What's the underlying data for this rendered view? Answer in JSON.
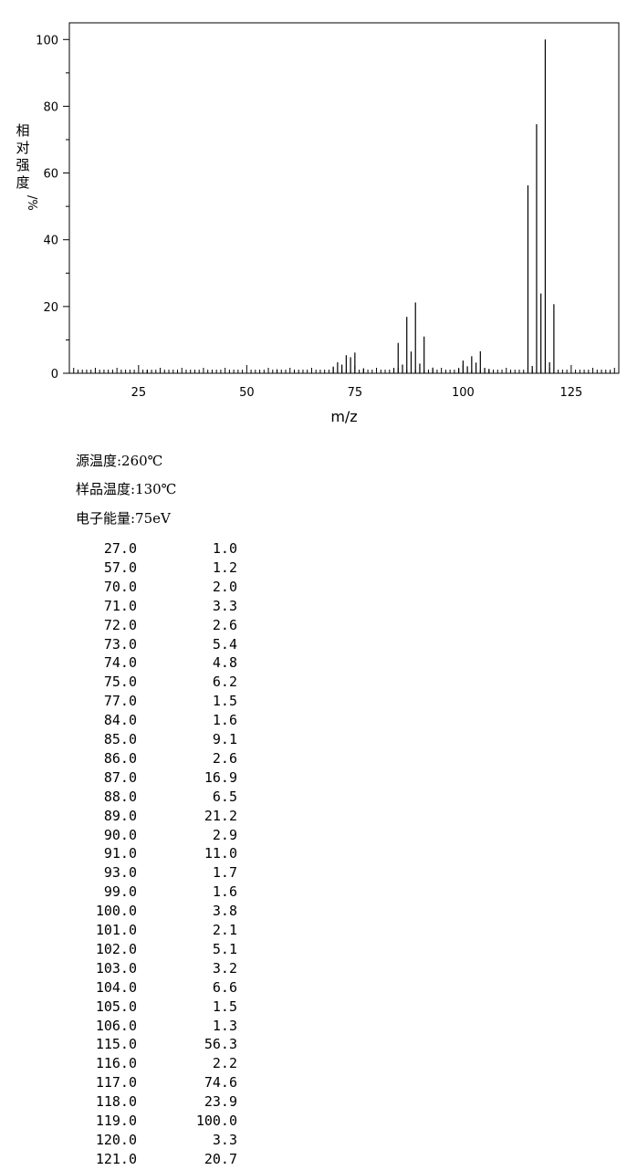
{
  "chart_data": {
    "type": "bar",
    "xlabel": "m/z",
    "ylabel_chars": [
      "相",
      "对",
      "强",
      "度",
      "/%"
    ],
    "xlim": [
      9,
      136
    ],
    "ylim": [
      0,
      105
    ],
    "x_ticks": [
      25,
      50,
      75,
      100,
      125
    ],
    "y_ticks": [
      0,
      20,
      40,
      60,
      80,
      100
    ],
    "grid": false,
    "peaks": [
      {
        "mz": "27.0",
        "ri": "1.0"
      },
      {
        "mz": "57.0",
        "ri": "1.2"
      },
      {
        "mz": "70.0",
        "ri": "2.0"
      },
      {
        "mz": "71.0",
        "ri": "3.3"
      },
      {
        "mz": "72.0",
        "ri": "2.6"
      },
      {
        "mz": "73.0",
        "ri": "5.4"
      },
      {
        "mz": "74.0",
        "ri": "4.8"
      },
      {
        "mz": "75.0",
        "ri": "6.2"
      },
      {
        "mz": "77.0",
        "ri": "1.5"
      },
      {
        "mz": "84.0",
        "ri": "1.6"
      },
      {
        "mz": "85.0",
        "ri": "9.1"
      },
      {
        "mz": "86.0",
        "ri": "2.6"
      },
      {
        "mz": "87.0",
        "ri": "16.9"
      },
      {
        "mz": "88.0",
        "ri": "6.5"
      },
      {
        "mz": "89.0",
        "ri": "21.2"
      },
      {
        "mz": "90.0",
        "ri": "2.9"
      },
      {
        "mz": "91.0",
        "ri": "11.0"
      },
      {
        "mz": "93.0",
        "ri": "1.7"
      },
      {
        "mz": "99.0",
        "ri": "1.6"
      },
      {
        "mz": "100.0",
        "ri": "3.8"
      },
      {
        "mz": "101.0",
        "ri": "2.1"
      },
      {
        "mz": "102.0",
        "ri": "5.1"
      },
      {
        "mz": "103.0",
        "ri": "3.2"
      },
      {
        "mz": "104.0",
        "ri": "6.6"
      },
      {
        "mz": "105.0",
        "ri": "1.5"
      },
      {
        "mz": "106.0",
        "ri": "1.3"
      },
      {
        "mz": "115.0",
        "ri": "56.3"
      },
      {
        "mz": "116.0",
        "ri": "2.2"
      },
      {
        "mz": "117.0",
        "ri": "74.6"
      },
      {
        "mz": "118.0",
        "ri": "23.9"
      },
      {
        "mz": "119.0",
        "ri": "100.0"
      },
      {
        "mz": "120.0",
        "ri": "3.3"
      },
      {
        "mz": "121.0",
        "ri": "20.7"
      }
    ]
  },
  "conditions": {
    "source_temp": "源温度:260℃",
    "sample_temp": "样品温度:130℃",
    "electron_energy": "电子能量:75eV"
  }
}
